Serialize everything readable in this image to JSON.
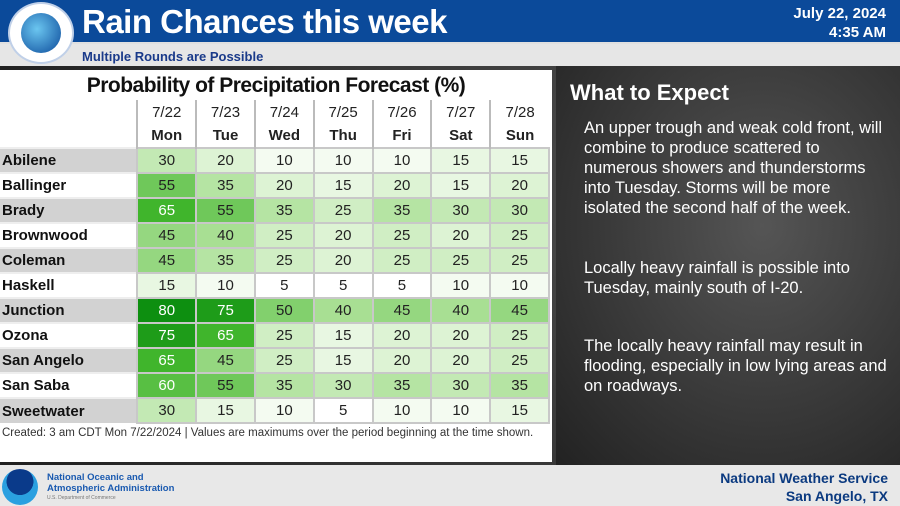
{
  "header": {
    "title": "Rain Chances this week",
    "date": "July 22, 2024",
    "time": "4:35 AM",
    "subtitle": "Multiple Rounds are Possible"
  },
  "table": {
    "title": "Probability of Precipitation Forecast (%)",
    "dates": [
      "7/22",
      "7/23",
      "7/24",
      "7/25",
      "7/26",
      "7/27",
      "7/28"
    ],
    "days": [
      "Mon",
      "Tue",
      "Wed",
      "Thu",
      "Fri",
      "Sat",
      "Sun"
    ],
    "rows": [
      {
        "name": "Abilene",
        "values": [
          30,
          20,
          10,
          10,
          10,
          15,
          15
        ]
      },
      {
        "name": "Ballinger",
        "values": [
          55,
          35,
          20,
          15,
          20,
          15,
          20
        ]
      },
      {
        "name": "Brady",
        "values": [
          65,
          55,
          35,
          25,
          35,
          30,
          30
        ]
      },
      {
        "name": "Brownwood",
        "values": [
          45,
          40,
          25,
          20,
          25,
          20,
          25
        ]
      },
      {
        "name": "Coleman",
        "values": [
          45,
          35,
          25,
          20,
          25,
          25,
          25
        ]
      },
      {
        "name": "Haskell",
        "values": [
          15,
          10,
          5,
          5,
          5,
          10,
          10
        ]
      },
      {
        "name": "Junction",
        "values": [
          80,
          75,
          50,
          40,
          45,
          40,
          45
        ]
      },
      {
        "name": "Ozona",
        "values": [
          75,
          65,
          25,
          15,
          20,
          20,
          25
        ]
      },
      {
        "name": "San Angelo",
        "values": [
          65,
          45,
          25,
          15,
          20,
          20,
          25
        ]
      },
      {
        "name": "San Saba",
        "values": [
          60,
          55,
          35,
          30,
          35,
          30,
          35
        ]
      },
      {
        "name": "Sweetwater",
        "values": [
          30,
          15,
          10,
          5,
          10,
          10,
          15
        ]
      }
    ],
    "created": "Created: 3 am CDT Mon 7/22/2024  |  Values are maximums over the period beginning at the time shown."
  },
  "expect": {
    "title": "What to Expect",
    "paragraphs": [
      "An upper trough and weak cold front, will combine to produce scattered to numerous showers and thunderstorms into Tuesday. Storms will be more isolated the second half of the week.",
      "Locally heavy rainfall is possible into Tuesday, mainly south of I-20.",
      "The locally heavy rainfall may result in flooding, especially in low lying areas and on roadways."
    ]
  },
  "footer": {
    "noaa_line1": "National Oceanic and",
    "noaa_line2": "Atmospheric Administration",
    "noaa_dept": "U.S. Department of Commerce",
    "nws": "National Weather Service",
    "office": "San Angelo, TX"
  },
  "colors": {
    "header": "#0b4a9a",
    "low": "#ffffff",
    "high": "#0d8f10"
  }
}
